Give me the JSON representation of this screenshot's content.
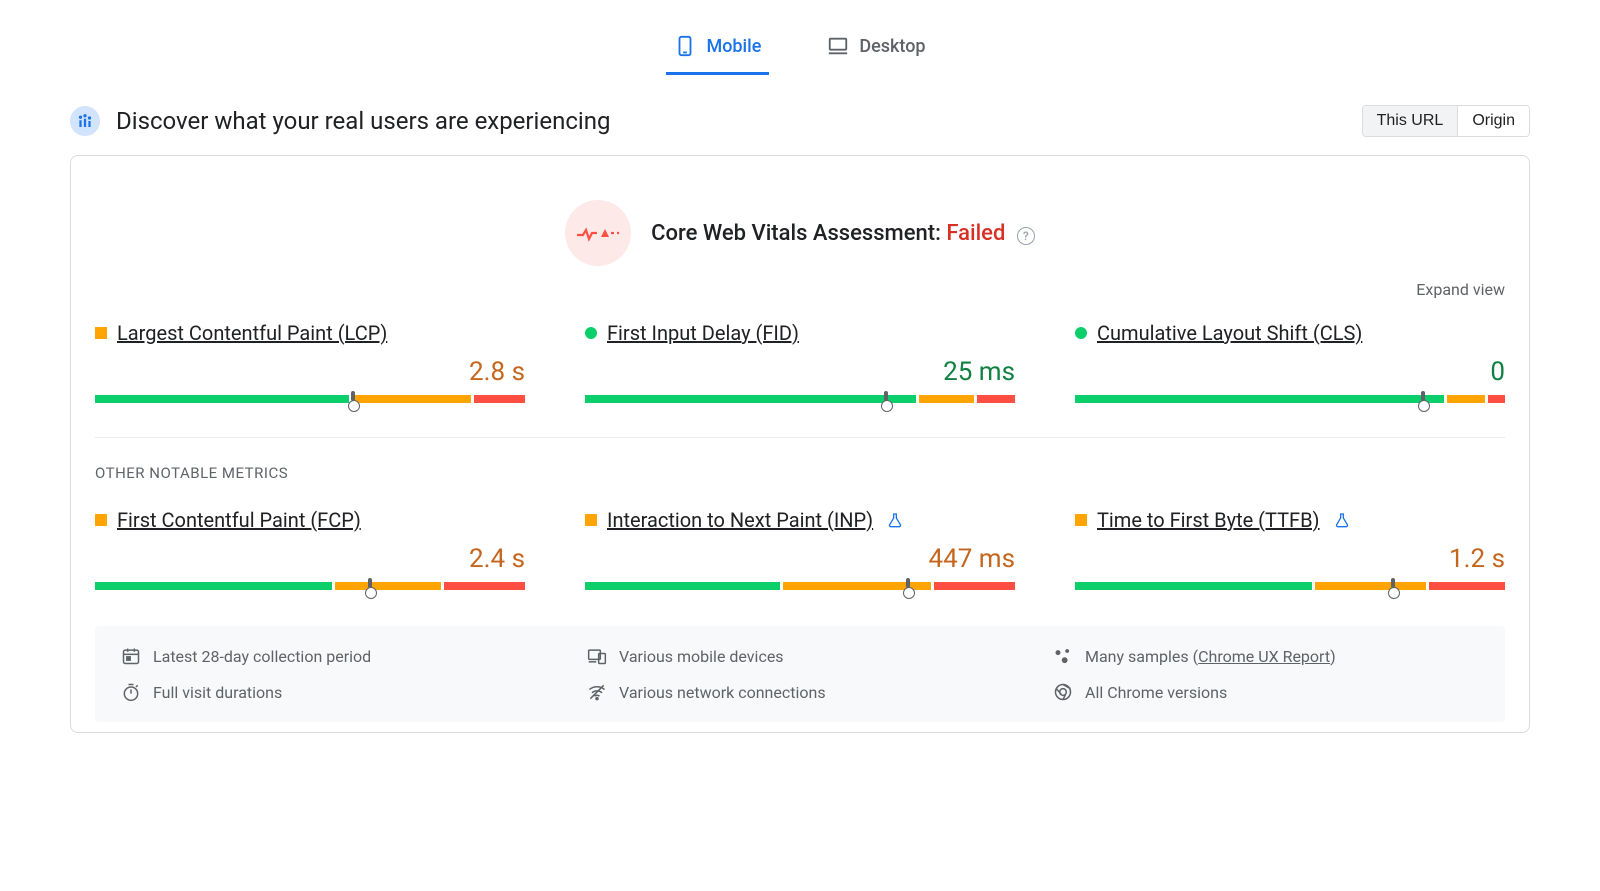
{
  "colors": {
    "blue": "#1a73e8",
    "green": "#0cce6b",
    "orange": "#ffa400",
    "red": "#ff4e42",
    "text_orange": "#c5661e",
    "text_green": "#108043",
    "grey": "#5f6368",
    "border": "#dadce0",
    "pink_bg": "#fde9e8",
    "footer_bg": "#f8f9fa"
  },
  "tabs": {
    "mobile": "Mobile",
    "desktop": "Desktop",
    "active": "mobile"
  },
  "header": {
    "title": "Discover what your real users are experiencing",
    "toggle": {
      "this_url": "This URL",
      "origin": "Origin",
      "active": "this_url"
    }
  },
  "assessment": {
    "label": "Core Web Vitals Assessment:",
    "status": "Failed",
    "status_color": "#d93025"
  },
  "expand_label": "Expand view",
  "subheading": "OTHER NOTABLE METRICS",
  "metrics_top": [
    {
      "id": "lcp",
      "name": "Largest Contentful Paint (LCP)",
      "status": "orange",
      "marker_shape": "square",
      "value": "2.8 s",
      "value_color": "#c5661e",
      "segments": [
        {
          "color": "#0cce6b",
          "width_pct": 60
        },
        {
          "color": "#ffa400",
          "width_pct": 28
        },
        {
          "color": "#ff4e42",
          "width_pct": 12
        }
      ],
      "marker_pct": 60,
      "experimental": false
    },
    {
      "id": "fid",
      "name": "First Input Delay (FID)",
      "status": "green",
      "marker_shape": "circle",
      "value": "25 ms",
      "value_color": "#108043",
      "segments": [
        {
          "color": "#0cce6b",
          "width_pct": 78
        },
        {
          "color": "#ffa400",
          "width_pct": 13
        },
        {
          "color": "#ff4e42",
          "width_pct": 9
        }
      ],
      "marker_pct": 70,
      "experimental": false
    },
    {
      "id": "cls",
      "name": "Cumulative Layout Shift (CLS)",
      "status": "green",
      "marker_shape": "circle",
      "value": "0",
      "value_color": "#108043",
      "segments": [
        {
          "color": "#0cce6b",
          "width_pct": 87
        },
        {
          "color": "#ffa400",
          "width_pct": 9
        },
        {
          "color": "#ff4e42",
          "width_pct": 4
        }
      ],
      "marker_pct": 81,
      "experimental": false
    }
  ],
  "metrics_other": [
    {
      "id": "fcp",
      "name": "First Contentful Paint (FCP)",
      "status": "orange",
      "marker_shape": "square",
      "value": "2.4 s",
      "value_color": "#c5661e",
      "segments": [
        {
          "color": "#0cce6b",
          "width_pct": 56
        },
        {
          "color": "#ffa400",
          "width_pct": 25
        },
        {
          "color": "#ff4e42",
          "width_pct": 19
        }
      ],
      "marker_pct": 64,
      "experimental": false
    },
    {
      "id": "inp",
      "name": "Interaction to Next Paint (INP)",
      "status": "orange",
      "marker_shape": "square",
      "value": "447 ms",
      "value_color": "#c5661e",
      "segments": [
        {
          "color": "#0cce6b",
          "width_pct": 46
        },
        {
          "color": "#ffa400",
          "width_pct": 35
        },
        {
          "color": "#ff4e42",
          "width_pct": 19
        }
      ],
      "marker_pct": 75,
      "experimental": true
    },
    {
      "id": "ttfb",
      "name": "Time to First Byte (TTFB)",
      "status": "orange",
      "marker_shape": "square",
      "value": "1.2 s",
      "value_color": "#c5661e",
      "segments": [
        {
          "color": "#0cce6b",
          "width_pct": 56
        },
        {
          "color": "#ffa400",
          "width_pct": 26
        },
        {
          "color": "#ff4e42",
          "width_pct": 18
        }
      ],
      "marker_pct": 74,
      "experimental": true
    }
  ],
  "footer": {
    "period": "Latest 28-day collection period",
    "devices": "Various mobile devices",
    "samples_prefix": "Many samples (",
    "samples_link": "Chrome UX Report",
    "samples_suffix": ")",
    "durations": "Full visit durations",
    "network": "Various network connections",
    "versions": "All Chrome versions"
  }
}
